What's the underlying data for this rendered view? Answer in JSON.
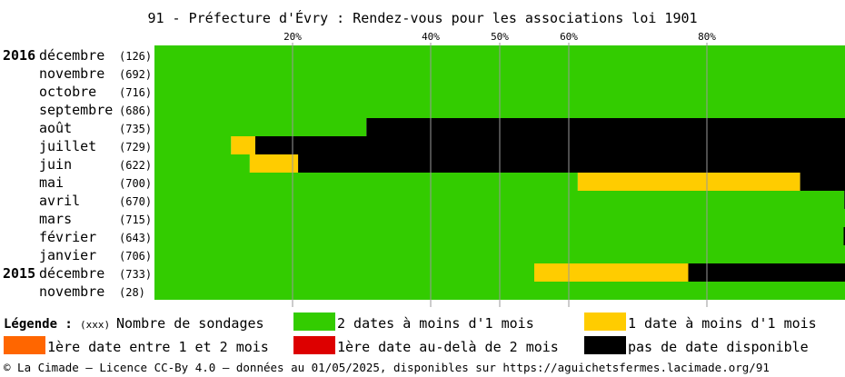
{
  "chart_data": {
    "type": "bar",
    "orientation": "horizontal-stacked-percent",
    "title": "91 - Préfecture d'Évry : Rendez-vous pour les associations loi 1901",
    "x_ticks": [
      20,
      40,
      50,
      60,
      80
    ],
    "x_tick_suffix": "%",
    "xlim": [
      0,
      100
    ],
    "grid": true,
    "rows": [
      {
        "year": "2016",
        "month": "décembre",
        "count": "(126)",
        "segments": [
          100,
          0,
          0,
          0,
          0
        ]
      },
      {
        "year": "",
        "month": "novembre",
        "count": "(692)",
        "segments": [
          100,
          0,
          0,
          0,
          0
        ]
      },
      {
        "year": "",
        "month": "octobre",
        "count": "(716)",
        "segments": [
          100,
          0,
          0,
          0,
          0
        ]
      },
      {
        "year": "",
        "month": "septembre",
        "count": "(686)",
        "segments": [
          100,
          0,
          0,
          0,
          0
        ]
      },
      {
        "year": "",
        "month": "août",
        "count": "(735)",
        "segments": [
          30.7,
          0,
          0,
          0,
          69.3
        ]
      },
      {
        "year": "",
        "month": "juillet",
        "count": "(729)",
        "segments": [
          11.1,
          3.5,
          0,
          0,
          85.4
        ]
      },
      {
        "year": "",
        "month": "juin",
        "count": "(622)",
        "segments": [
          13.8,
          7.0,
          0,
          0,
          79.2
        ]
      },
      {
        "year": "",
        "month": "mai",
        "count": "(700)",
        "segments": [
          61.3,
          32.2,
          0,
          0,
          6.5
        ]
      },
      {
        "year": "",
        "month": "avril",
        "count": "(670)",
        "segments": [
          99.9,
          0,
          0,
          0,
          0.1
        ]
      },
      {
        "year": "",
        "month": "mars",
        "count": "(715)",
        "segments": [
          100,
          0,
          0,
          0,
          0
        ]
      },
      {
        "year": "",
        "month": "février",
        "count": "(643)",
        "segments": [
          99.8,
          0,
          0,
          0,
          0.2
        ]
      },
      {
        "year": "",
        "month": "janvier",
        "count": "(706)",
        "segments": [
          100,
          0,
          0,
          0,
          0
        ]
      },
      {
        "year": "2015",
        "month": "décembre",
        "count": "(733)",
        "segments": [
          55.0,
          22.3,
          0,
          0,
          22.7
        ]
      },
      {
        "year": "",
        "month": "novembre",
        "count": "(28)",
        "segments": [
          100,
          0,
          0,
          0,
          0
        ]
      }
    ],
    "series": [
      {
        "name": "2 dates à moins d'1 mois",
        "color": "#33cc00"
      },
      {
        "name": "1 date à moins d'1 mois",
        "color": "#ffcc00"
      },
      {
        "name": "1ère date entre 1 et 2 mois",
        "color": "#ff6600"
      },
      {
        "name": "1ère date au-delà de 2 mois",
        "color": "#dd0000"
      },
      {
        "name": "pas de date disponible",
        "color": "#000000"
      }
    ]
  },
  "legend": {
    "label": "Légende :",
    "count_marker": "(xxx)",
    "count_text": "Nombre de sondages"
  },
  "footer": "© La Cimade – Licence CC-By 4.0 – données au 01/05/2025, disponibles sur https://aguichetsfermes.lacimade.org/91"
}
